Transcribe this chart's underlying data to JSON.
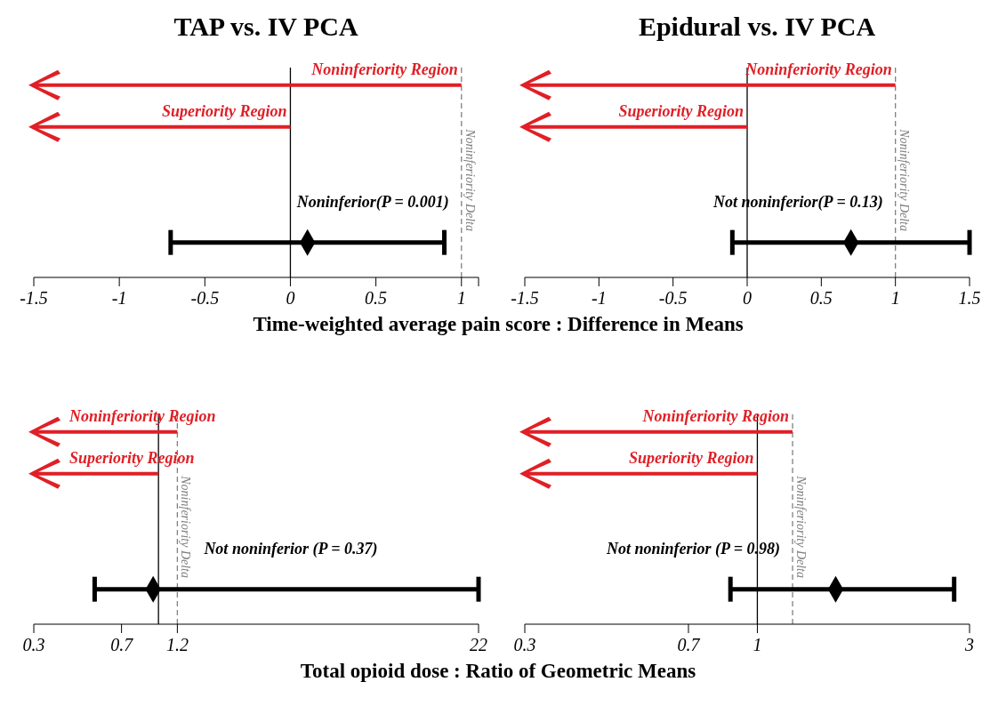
{
  "chart_data": [
    {
      "type": "scatter",
      "title": "TAP vs. IV PCA",
      "xlabel": "Time-weighted average pain score : Difference in Means",
      "orientation": "horizontal",
      "categories": [
        null
      ],
      "values": [
        0.1
      ],
      "errors": [
        [
          -0.7,
          0.9
        ]
      ],
      "color": "#000000",
      "marker": "diamond",
      "xlim": [
        -1.5,
        1.1
      ],
      "xticks": [
        -1.5,
        -1,
        -0.5,
        0,
        0.5,
        1,
        {
          "value": 1.1,
          "label": null
        }
      ],
      "ref_lines": [
        {
          "axis": "x",
          "value": 0,
          "color": "#000000",
          "line_style": "solid"
        },
        {
          "axis": "x",
          "value": 1,
          "label": "Noninferiority Delta",
          "color": "#808080",
          "line_style": "dashed"
        }
      ],
      "annotations": [
        {
          "text": "Noninferiority Region",
          "x": 1
        },
        {
          "text": "Superiority Region",
          "x": 0
        },
        "Noninferior(P = 0.001)"
      ]
    },
    {
      "type": "scatter",
      "title": "Epidural vs. IV PCA",
      "orientation": "horizontal",
      "categories": [
        null
      ],
      "values": [
        0.7
      ],
      "errors": [
        [
          -0.1,
          1.5
        ]
      ],
      "color": "#000000",
      "marker": "diamond",
      "xlim": [
        -1.5,
        1.5
      ],
      "xticks": [
        -1.5,
        -1,
        -0.5,
        0,
        0.5,
        1,
        1.5
      ],
      "ref_lines": [
        {
          "axis": "x",
          "value": 0,
          "color": "#000000",
          "line_style": "solid"
        },
        {
          "axis": "x",
          "value": 1,
          "label": "Noninferiority Delta",
          "color": "#808080",
          "line_style": "dashed"
        }
      ],
      "annotations": [
        {
          "text": "Noninferiority Region",
          "x": 1
        },
        {
          "text": "Superiority Region",
          "x": 0
        },
        "Not noninferior(P = 0.13)"
      ]
    },
    {
      "type": "scatter",
      "xlabel": "Total opioid dose : Ratio of Geometric Means",
      "orientation": "horizontal",
      "categories": [
        null
      ],
      "values": [
        0.95
      ],
      "errors": [
        [
          0.54,
          22
        ]
      ],
      "color": "#000000",
      "marker": "diamond",
      "log": "x",
      "xlim": [
        0.3,
        22
      ],
      "xticks": [
        0.3,
        0.7,
        1.2,
        22
      ],
      "ref_lines": [
        {
          "axis": "x",
          "value": 1,
          "color": "#000000",
          "line_style": "solid"
        },
        {
          "axis": "x",
          "value": 1.2,
          "label": "Noninferiority Delta",
          "color": "#808080",
          "line_style": "dashed"
        }
      ],
      "annotations": [
        {
          "text": "Noninferiority Region",
          "x": 1.2
        },
        {
          "text": "Superiority Region",
          "x": 1
        },
        "Not noninferior (P = 0.37)"
      ]
    },
    {
      "type": "scatter",
      "orientation": "horizontal",
      "categories": [
        null
      ],
      "values": [
        1.5
      ],
      "errors": [
        [
          0.87,
          2.77
        ]
      ],
      "color": "#000000",
      "marker": "diamond",
      "log": "x",
      "xlim": [
        0.3,
        3
      ],
      "xticks": [
        0.3,
        0.7,
        1,
        3
      ],
      "ref_lines": [
        {
          "axis": "x",
          "value": 1,
          "color": "#000000",
          "line_style": "solid"
        },
        {
          "axis": "x",
          "value": 1.2,
          "label": "Noninferiority Delta",
          "color": "#808080",
          "line_style": "dashed"
        }
      ],
      "annotations": [
        {
          "text": "Noninferiority Region",
          "x": 1.2
        },
        {
          "text": "Superiority Region",
          "x": 1
        },
        "Not noninferior (P = 0.98)"
      ]
    }
  ]
}
